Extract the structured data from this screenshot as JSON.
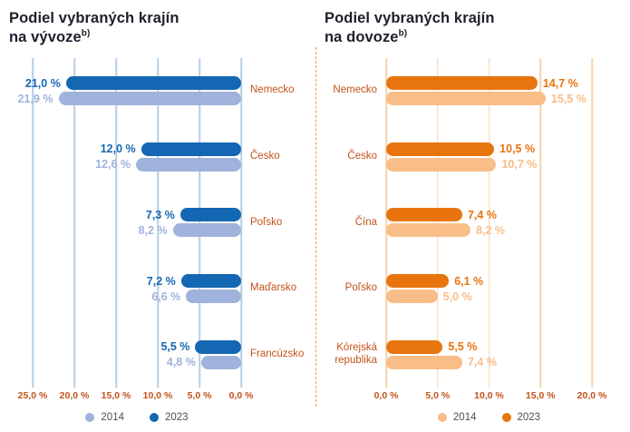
{
  "divider_color": "#e2a43e",
  "chart_data": [
    {
      "type": "bar",
      "orientation": "horizontal",
      "direction": "right-to-left",
      "title_line1": "Podiel vybraných krajín",
      "title_line2": "na vývoze",
      "title_note": "b)",
      "categories": [
        "Nemecko",
        "Česko",
        "Poľsko",
        "Maďarsko",
        "Francúzsko"
      ],
      "series": [
        {
          "name": "2023",
          "color": "#1467b2",
          "values": [
            21.0,
            12.0,
            7.3,
            7.2,
            5.5
          ],
          "labels": [
            "21,0 %",
            "12,0 %",
            "7,3 %",
            "7,2 %",
            "5,5 %"
          ]
        },
        {
          "name": "2014",
          "color": "#9fb3dc",
          "values": [
            21.9,
            12.6,
            8.2,
            6.6,
            4.8
          ],
          "labels": [
            "21,9 %",
            "12,6 %",
            "8,2 %",
            "6,6 %",
            "4,8 %"
          ]
        }
      ],
      "axis": {
        "min": 0,
        "max": 25,
        "ticks": [
          "25,0 %",
          "20,0 %",
          "15,0 %",
          "10,0 %",
          "5,0 %",
          "0,0 %"
        ]
      },
      "legend": [
        {
          "label": "2014",
          "color": "#9fb3dc"
        },
        {
          "label": "2023",
          "color": "#1467b2"
        }
      ],
      "grid_color": "#b5cde6",
      "label_color": "#c5521b",
      "grid": true,
      "legend_position": "bottom-center"
    },
    {
      "type": "bar",
      "orientation": "horizontal",
      "direction": "left-to-right",
      "title_line1": "Podiel vybraných krajín",
      "title_line2": "na dovoze",
      "title_note": "b)",
      "categories": [
        "Nemecko",
        "Česko",
        "Čína",
        "Poľsko",
        "Kórejská republika"
      ],
      "series": [
        {
          "name": "2023",
          "color": "#e8740e",
          "values": [
            14.7,
            10.5,
            7.4,
            6.1,
            5.5
          ],
          "labels": [
            "14,7 %",
            "10,5 %",
            "7,4 %",
            "6,1 %",
            "5,5 %"
          ]
        },
        {
          "name": "2014",
          "color": "#f9bd88",
          "values": [
            15.5,
            10.7,
            8.2,
            5.0,
            7.4
          ],
          "labels": [
            "15,5 %",
            "10,7 %",
            "8,2 %",
            "5,0 %",
            "7,4 %"
          ]
        }
      ],
      "axis": {
        "min": 0,
        "max": 20,
        "ticks": [
          "0,0 %",
          "5,0 %",
          "10,0 %",
          "15,0 %",
          "20,0 %"
        ]
      },
      "legend": [
        {
          "label": "2014",
          "color": "#f9bd88"
        },
        {
          "label": "2023",
          "color": "#e8740e"
        }
      ],
      "grid_color": "#f7d3ac",
      "label_color": "#c5521b",
      "grid": true,
      "legend_position": "bottom-center"
    }
  ]
}
